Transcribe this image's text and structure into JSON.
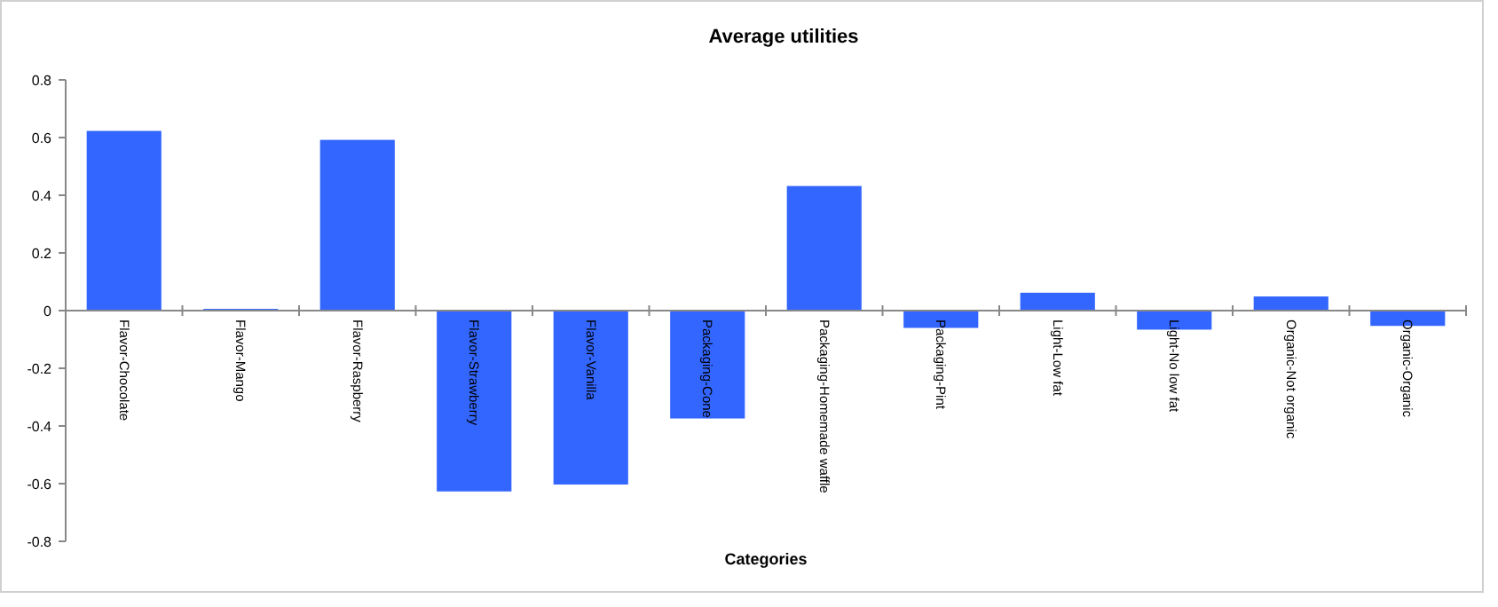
{
  "chart_data": {
    "type": "bar",
    "title": "Average utilities",
    "xlabel": "Categories",
    "categories": [
      "Flavor-Chocolate",
      "Flavor-Mango",
      "Flavor-Raspberry",
      "Flavor-Strawberry",
      "Flavor-Vanilla",
      "Packaging-Cone",
      "Packaging-Homemade waffle",
      "Packaging-Pint",
      "Light-Low fat",
      "Light-No low fat",
      "Organic-Not organic",
      "Organic-Organic"
    ],
    "values": [
      0.623,
      0.006,
      0.592,
      -0.627,
      -0.603,
      -0.374,
      0.432,
      -0.06,
      0.062,
      -0.066,
      0.049,
      -0.053
    ],
    "color": "#3366ff",
    "ylim": [
      -0.8,
      0.8
    ],
    "yticks": [
      -0.8,
      -0.6,
      -0.4,
      -0.2,
      0,
      0.2,
      0.4,
      0.6,
      0.8
    ],
    "grid": false
  }
}
